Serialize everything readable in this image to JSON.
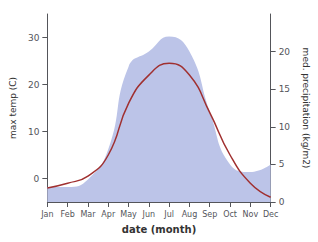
{
  "chart_data": {
    "type": "line",
    "categories": [
      "Jan",
      "Feb",
      "Mar",
      "Apr",
      "May",
      "Jun",
      "Jul",
      "Aug",
      "Sep",
      "Oct",
      "Nov",
      "Dec"
    ],
    "xlabel": "date (month)",
    "ylabel": "max temp (C)",
    "y2label": "med. precipitation (kg/m2)",
    "series": [
      {
        "type": "area",
        "axis": "y2",
        "color": "#bcc4e8",
        "line_style": "smooth",
        "values": [
          2.0,
          2.0,
          3.0,
          7.0,
          18.0,
          20.0,
          22.0,
          20.0,
          12.0,
          5.0,
          4.0,
          5.0
        ]
      },
      {
        "type": "line",
        "color": "#a03030",
        "line_style": "smooth",
        "values": [
          -2.0,
          -1.0,
          0.5,
          5.0,
          16.0,
          22.0,
          24.5,
          22.0,
          14.0,
          5.0,
          -1.0,
          -4.0
        ]
      }
    ],
    "ylim": [
      -5,
      35
    ],
    "yticks": [
      0,
      10,
      20,
      30
    ],
    "y2lim": [
      0,
      25
    ],
    "y2ticks": [
      0,
      5,
      10,
      15,
      20
    ],
    "grid": false
  }
}
